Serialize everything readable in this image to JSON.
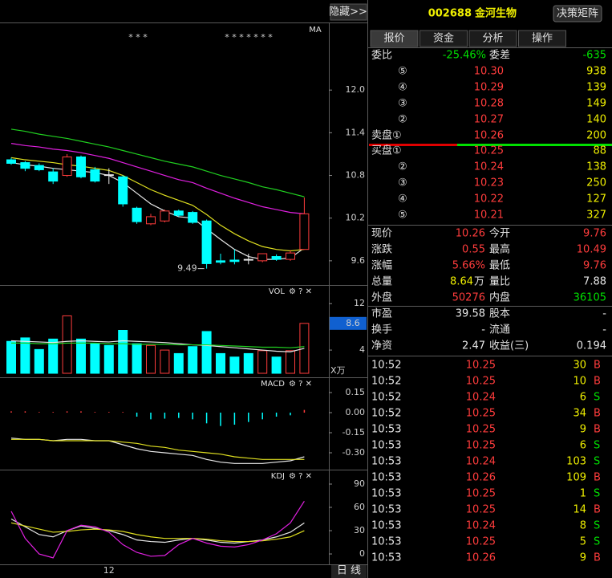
{
  "header": {
    "hide_button": "隐藏>>",
    "code": "002688",
    "name": "金河生物",
    "matrix_button": "决策矩阵"
  },
  "tabs": [
    "报价",
    "资金",
    "分析",
    "操作"
  ],
  "charts": {
    "price": {
      "label": "MA",
      "stars_left": "* * *",
      "stars_right": "* * * * * * *",
      "low_label": "9.49",
      "ylim": [
        9.26,
        12.95
      ],
      "yticks": [
        {
          "value": 12,
          "label": "12.0"
        },
        11.4,
        10.8,
        10.2,
        9.6
      ],
      "categories": [
        null,
        null,
        null,
        null,
        null,
        null,
        null,
        "12",
        null,
        null,
        null,
        null,
        null,
        null,
        null,
        null,
        null,
        null,
        null,
        null,
        null,
        null
      ],
      "open": [
        11.02,
        10.98,
        10.94,
        10.85,
        10.8,
        11.06,
        10.88,
        10.81,
        10.78,
        10.34,
        10.12,
        10.16,
        10.3,
        10.28,
        10.16,
        9.6,
        9.61,
        9.62,
        9.6,
        9.66,
        9.62,
        9.76
      ],
      "high": [
        11.05,
        11.0,
        10.97,
        10.9,
        11.1,
        11.08,
        10.92,
        10.9,
        10.8,
        10.36,
        10.26,
        10.32,
        10.32,
        10.3,
        10.18,
        9.7,
        9.76,
        9.7,
        9.7,
        9.69,
        9.75,
        10.49
      ],
      "low": [
        10.95,
        10.86,
        10.86,
        10.68,
        10.78,
        10.76,
        10.7,
        10.68,
        10.36,
        10.12,
        10.1,
        10.14,
        10.22,
        10.12,
        9.49,
        9.55,
        9.55,
        9.55,
        9.58,
        9.6,
        9.6,
        9.76
      ],
      "close": [
        10.97,
        10.9,
        10.88,
        10.72,
        11.06,
        10.78,
        10.72,
        10.81,
        10.4,
        10.15,
        10.22,
        10.3,
        10.24,
        10.14,
        9.56,
        9.58,
        9.59,
        9.62,
        9.7,
        9.62,
        9.71,
        10.26
      ],
      "series": [
        {
          "color": "#e8e8e8",
          "values": [
            10.98,
            10.95,
            10.93,
            10.9,
            10.88,
            10.86,
            10.84,
            10.8,
            10.7,
            10.55,
            10.4,
            10.3,
            10.22,
            10.2,
            10.05,
            9.9,
            9.76,
            9.66,
            9.62,
            9.62,
            9.64,
            9.78
          ]
        },
        {
          "color": "#e0e020",
          "values": [
            11.05,
            11.02,
            11.0,
            10.98,
            10.95,
            10.93,
            10.9,
            10.87,
            10.8,
            10.7,
            10.6,
            10.52,
            10.45,
            10.38,
            10.25,
            10.1,
            9.98,
            9.88,
            9.8,
            9.76,
            9.74,
            9.76
          ]
        },
        {
          "color": "#e020e0",
          "values": [
            11.25,
            11.22,
            11.2,
            11.17,
            11.15,
            11.12,
            11.08,
            11.04,
            10.98,
            10.92,
            10.86,
            10.8,
            10.74,
            10.7,
            10.62,
            10.55,
            10.48,
            10.42,
            10.36,
            10.32,
            10.28,
            10.26
          ]
        },
        {
          "color": "#20d020",
          "values": [
            11.45,
            11.42,
            11.38,
            11.35,
            11.32,
            11.28,
            11.24,
            11.2,
            11.15,
            11.1,
            11.05,
            11.0,
            10.96,
            10.92,
            10.86,
            10.8,
            10.75,
            10.7,
            10.64,
            10.6,
            10.55,
            10.5
          ]
        }
      ]
    },
    "volume": {
      "label": "VOL",
      "unit": "X万",
      "ylim": [
        0,
        14.8
      ],
      "yticks": [
        4,
        12
      ],
      "values": [
        5.5,
        6.1,
        4.1,
        5.9,
        9.9,
        5.9,
        5.1,
        4.8,
        7.4,
        5.1,
        4.8,
        4.0,
        3.4,
        4.6,
        7.2,
        3.4,
        2.8,
        3.4,
        3.9,
        2.8,
        3.9,
        8.6
      ],
      "series": [
        {
          "color": "#e8e8e8",
          "values": [
            5.6,
            5.5,
            5.4,
            5.3,
            5.5,
            5.6,
            5.5,
            5.4,
            5.6,
            5.5,
            5.4,
            5.3,
            5.1,
            4.9,
            4.8,
            4.6,
            4.4,
            4.2,
            4.0,
            3.8,
            3.7,
            4.3
          ]
        },
        {
          "color": "#20d020",
          "values": [
            5.2,
            5.2,
            5.1,
            5.1,
            5.2,
            5.2,
            5.2,
            5.1,
            5.1,
            5.0,
            5.0,
            5.0,
            4.9,
            4.9,
            4.9,
            4.8,
            4.7,
            4.6,
            4.5,
            4.5,
            4.4,
            4.6
          ]
        }
      ]
    },
    "macd": {
      "label": "MACD",
      "ylim": [
        -0.426,
        0.252
      ],
      "yticks": [
        0.15,
        {
          "value": 0,
          "label": "0.00"
        },
        -0.15,
        {
          "value": -0.3,
          "label": "-0.30"
        }
      ],
      "bars": [
        0.01,
        0.01,
        0.005,
        0.005,
        0.01,
        0.01,
        0.005,
        0.005,
        0.005,
        -0.03,
        -0.05,
        -0.045,
        -0.04,
        -0.05,
        -0.08,
        -0.1,
        -0.09,
        -0.07,
        -0.05,
        -0.03,
        -0.02,
        0.02
      ],
      "series": [
        {
          "color": "#e8e8e8",
          "values": [
            -0.19,
            -0.2,
            -0.2,
            -0.21,
            -0.2,
            -0.2,
            -0.21,
            -0.21,
            -0.24,
            -0.27,
            -0.29,
            -0.3,
            -0.31,
            -0.32,
            -0.35,
            -0.37,
            -0.38,
            -0.38,
            -0.38,
            -0.37,
            -0.36,
            -0.33
          ]
        },
        {
          "color": "#e0e020",
          "values": [
            -0.2,
            -0.2,
            -0.2,
            -0.21,
            -0.21,
            -0.21,
            -0.21,
            -0.21,
            -0.22,
            -0.23,
            -0.25,
            -0.26,
            -0.28,
            -0.29,
            -0.3,
            -0.31,
            -0.33,
            -0.34,
            -0.35,
            -0.35,
            -0.35,
            -0.35
          ]
        }
      ]
    },
    "kdj": {
      "label": "KDJ",
      "ylim": [
        -13.4,
        105.5
      ],
      "yticks": [
        0,
        30,
        60,
        90
      ],
      "series": [
        {
          "color": "#e8e8e8",
          "values": [
            45,
            35,
            25,
            22,
            30,
            36,
            33,
            30,
            25,
            18,
            16,
            15,
            18,
            20,
            18,
            15,
            14,
            16,
            18,
            22,
            28,
            40
          ]
        },
        {
          "color": "#e0e020",
          "values": [
            40,
            36,
            32,
            28,
            29,
            31,
            32,
            31,
            29,
            25,
            22,
            20,
            20,
            20,
            19,
            17,
            16,
            16,
            17,
            19,
            22,
            30
          ]
        },
        {
          "color": "#e020e0",
          "values": [
            55,
            20,
            0,
            -5,
            30,
            37,
            35,
            28,
            12,
            2,
            -3,
            -2,
            12,
            20,
            14,
            10,
            9,
            12,
            18,
            26,
            40,
            68
          ]
        }
      ]
    },
    "period_button": "日 线"
  },
  "order_book": {
    "weibi_label": "委比",
    "weibi": "-25.46%",
    "weicha_label": "委差",
    "weicha": "-635",
    "asks": [
      {
        "label": "⑤",
        "price": "10.30",
        "volume": "938"
      },
      {
        "label": "④",
        "price": "10.29",
        "volume": "139"
      },
      {
        "label": "③",
        "price": "10.28",
        "volume": "149"
      },
      {
        "label": "②",
        "price": "10.27",
        "volume": "140"
      },
      {
        "label": "卖盘①",
        "price": "10.26",
        "volume": "200"
      }
    ],
    "bids": [
      {
        "label": "买盘①",
        "price": "10.25",
        "volume": "88"
      },
      {
        "label": "②",
        "price": "10.24",
        "volume": "138"
      },
      {
        "label": "③",
        "price": "10.23",
        "volume": "250"
      },
      {
        "label": "④",
        "price": "10.22",
        "volume": "127"
      },
      {
        "label": "⑤",
        "price": "10.21",
        "volume": "327"
      }
    ]
  },
  "quote": [
    {
      "label": "现价",
      "value": "10.26",
      "color": "red",
      "label2": "今开",
      "value2": "9.76",
      "color2": "red"
    },
    {
      "label": "涨跌",
      "value": "0.55",
      "color": "red",
      "label2": "最高",
      "value2": "10.49",
      "color2": "red"
    },
    {
      "label": "涨幅",
      "value": "5.66%",
      "color": "red",
      "label2": "最低",
      "value2": "9.76",
      "color2": "red"
    },
    {
      "label": "总量",
      "value": "8.64",
      "unit": "万",
      "color": "yel",
      "label2": "量比",
      "value2": "7.88",
      "color2": "wht"
    },
    {
      "label": "外盘",
      "value": "50276",
      "color": "red",
      "label2": "内盘",
      "value2": "36105",
      "color2": "grn"
    },
    {
      "label": "市盈",
      "value": "39.58",
      "color": "wht",
      "label2": "股本",
      "value2": "-",
      "color2": "wht"
    },
    {
      "label": "换手",
      "value": "-",
      "color": "wht",
      "label2": "流通",
      "value2": "-",
      "color2": "wht"
    },
    {
      "label": "净资",
      "value": "2.47",
      "color": "wht",
      "label2": "收益(三)",
      "value2": "0.194",
      "color2": "wht"
    }
  ],
  "trades": [
    [
      "10:52",
      "10.25",
      "30",
      "B"
    ],
    [
      "10:52",
      "10.25",
      "10",
      "B"
    ],
    [
      "10:52",
      "10.24",
      "6",
      "S"
    ],
    [
      "10:52",
      "10.25",
      "34",
      "B"
    ],
    [
      "10:53",
      "10.25",
      "9",
      "B"
    ],
    [
      "10:53",
      "10.25",
      "6",
      "S"
    ],
    [
      "10:53",
      "10.24",
      "103",
      "S"
    ],
    [
      "10:53",
      "10.26",
      "109",
      "B"
    ],
    [
      "10:53",
      "10.25",
      "1",
      "S"
    ],
    [
      "10:53",
      "10.25",
      "14",
      "B"
    ],
    [
      "10:53",
      "10.24",
      "8",
      "S"
    ],
    [
      "10:53",
      "10.25",
      "5",
      "S"
    ],
    [
      "10:53",
      "10.26",
      "9",
      "B"
    ]
  ]
}
